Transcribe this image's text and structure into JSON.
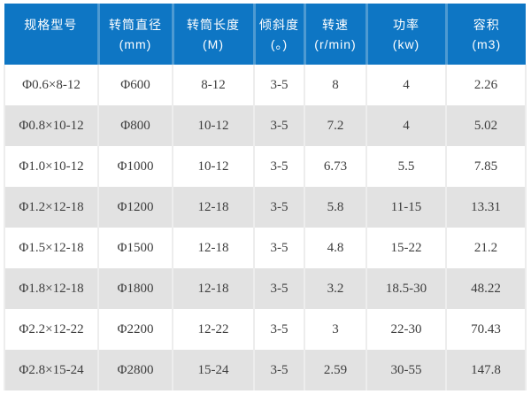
{
  "colors": {
    "header_bg": "#0e76c4",
    "header_divider": "#4e9ad2",
    "header_text": "#ffffff",
    "row_bg": "#ffffff",
    "row_alt_bg": "#e2e2e2",
    "cell_divider": "#ededed",
    "body_text": "#3d3d3d"
  },
  "chart_data": {
    "type": "table",
    "title": "",
    "columns": [
      {
        "label": "规格型号",
        "unit": ""
      },
      {
        "label": "转筒直径",
        "unit": "(mm)"
      },
      {
        "label": "转筒长度",
        "unit": "(M)"
      },
      {
        "label": "倾斜度",
        "unit": "(。)"
      },
      {
        "label": "转速",
        "unit": "(r/min)"
      },
      {
        "label": "功率",
        "unit": "(kw)"
      },
      {
        "label": "容积",
        "unit": "(m3)"
      }
    ],
    "rows": [
      [
        "Φ0.6×8-12",
        "Φ600",
        "8-12",
        "3-5",
        "8",
        "4",
        "2.26"
      ],
      [
        "Φ0.8×10-12",
        "Φ800",
        "10-12",
        "3-5",
        "7.2",
        "4",
        "5.02"
      ],
      [
        "Φ1.0×10-12",
        "Φ1000",
        "10-12",
        "3-5",
        "6.73",
        "5.5",
        "7.85"
      ],
      [
        "Φ1.2×12-18",
        "Φ1200",
        "12-18",
        "3-5",
        "5.8",
        "11-15",
        "13.31"
      ],
      [
        "Φ1.5×12-18",
        "Φ1500",
        "12-18",
        "3-5",
        "4.8",
        "15-22",
        "21.2"
      ],
      [
        "Φ1.8×12-18",
        "Φ1800",
        "12-18",
        "3-5",
        "3.2",
        "18.5-30",
        "48.22"
      ],
      [
        "Φ2.2×12-22",
        "Φ2200",
        "12-22",
        "3-5",
        "3",
        "22-30",
        "70.43"
      ],
      [
        "Φ2.8×15-24",
        "Φ2800",
        "15-24",
        "3-5",
        "2.59",
        "30-55",
        "147.8"
      ]
    ]
  }
}
